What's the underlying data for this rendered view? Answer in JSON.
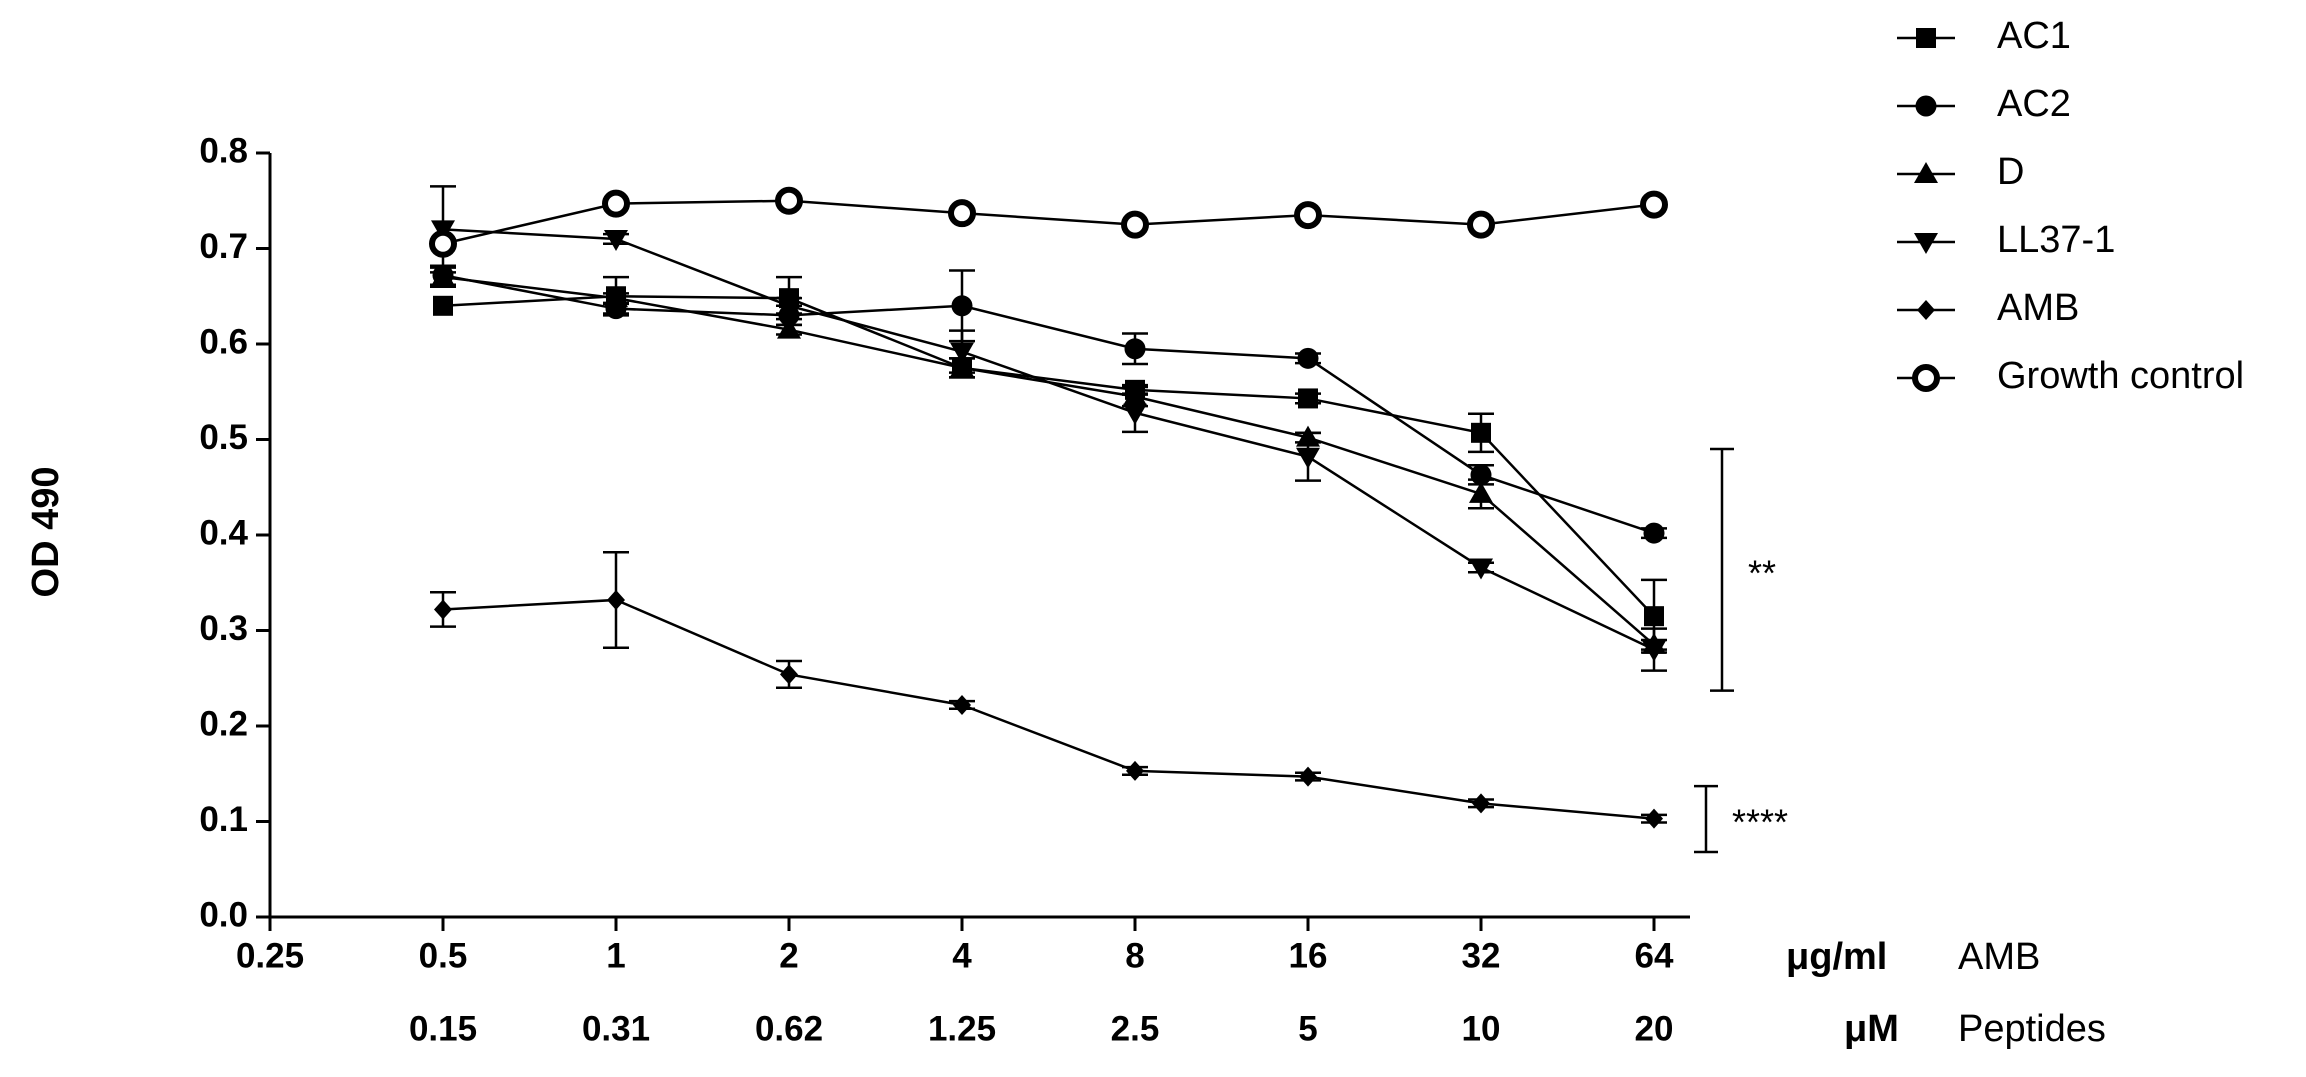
{
  "chart_data": {
    "type": "line",
    "ylabel": "OD 490",
    "ylim": [
      0,
      0.8
    ],
    "y_ticks": [
      "0.0",
      "0.1",
      "0.2",
      "0.3",
      "0.4",
      "0.5",
      "0.6",
      "0.7",
      "0.8"
    ],
    "x_scale": "log2",
    "x_ticks_top": [
      "0.25",
      "0.5",
      "1",
      "2",
      "4",
      "8",
      "16",
      "32",
      "64"
    ],
    "x_ticks_bottom": [
      "0.15",
      "0.31",
      "0.62",
      "1.25",
      "2.5",
      "5",
      "10",
      "20"
    ],
    "x_top_unit": "μg/ml",
    "x_top_label": "AMB",
    "x_bottom_unit": "μM",
    "x_bottom_label": "Peptides",
    "x": [
      0.5,
      1,
      2,
      4,
      8,
      16,
      32,
      64
    ],
    "series": [
      {
        "name": "AC1",
        "marker": "square",
        "values": [
          0.64,
          0.65,
          0.648,
          0.575,
          0.552,
          0.543,
          0.507,
          0.315
        ],
        "errors": [
          0.0,
          0.02,
          0.022,
          0.01,
          0.005,
          0.005,
          0.02,
          0.038
        ]
      },
      {
        "name": "AC2",
        "marker": "circle",
        "values": [
          0.672,
          0.637,
          0.63,
          0.64,
          0.595,
          0.585,
          0.463,
          0.402
        ],
        "errors": [
          0.01,
          0.005,
          0.01,
          0.037,
          0.016,
          0.005,
          0.01,
          0.005
        ]
      },
      {
        "name": "D",
        "marker": "triangle-up",
        "values": [
          0.67,
          0.648,
          0.615,
          0.575,
          0.545,
          0.502,
          0.443,
          0.285
        ],
        "errors": [
          0.01,
          0.005,
          0.005,
          0.01,
          0.01,
          0.005,
          0.015,
          0.005
        ]
      },
      {
        "name": "LL37-1",
        "marker": "triangle-down",
        "values": [
          0.72,
          0.71,
          0.64,
          0.592,
          0.528,
          0.482,
          0.366,
          0.28
        ],
        "errors": [
          0.045,
          0.005,
          0.008,
          0.022,
          0.02,
          0.025,
          0.005,
          0.022
        ]
      },
      {
        "name": "AMB",
        "marker": "diamond",
        "values": [
          0.322,
          0.332,
          0.254,
          0.222,
          0.153,
          0.147,
          0.119,
          0.103
        ],
        "errors": [
          0.018,
          0.05,
          0.014,
          0.004,
          0.004,
          0.004,
          0.004,
          0.004
        ]
      },
      {
        "name": "Growth control",
        "marker": "open-circle",
        "values": [
          0.705,
          0.747,
          0.75,
          0.737,
          0.725,
          0.735,
          0.725,
          0.746
        ],
        "errors": [
          0,
          0,
          0,
          0,
          0,
          0,
          0,
          0
        ]
      }
    ],
    "significance": [
      {
        "label": "**",
        "y_low": 0.237,
        "y_high": 0.49
      },
      {
        "label": "****",
        "y_low": 0.068,
        "y_high": 0.137
      }
    ],
    "legend_position": "top-right",
    "grid": false,
    "colors": {
      "line": "#000000",
      "background": "#ffffff"
    }
  }
}
